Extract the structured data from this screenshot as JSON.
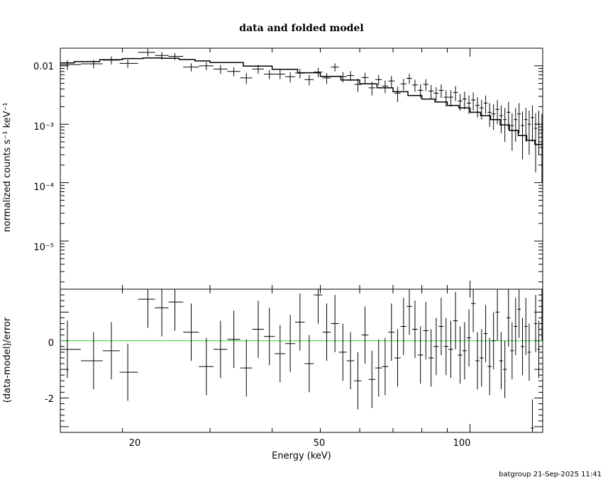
{
  "chart_data": {
    "type": "scatter",
    "title": "data and folded model",
    "xlabel": "Energy (keV)",
    "x_scale": "log",
    "xlim": [
      15,
      140
    ],
    "x_tick_labels": [
      "20",
      "50",
      "100"
    ],
    "footer": "batgroup 21-Sep-2025 11:41",
    "top_panel": {
      "ylabel": "normalized counts s⁻¹ keV⁻¹",
      "y_scale": "log",
      "ylim": [
        1.5e-06,
        0.02
      ],
      "y_tick_labels": [
        "0.01",
        "10⁻³",
        "10⁻⁴",
        "10⁻⁵"
      ],
      "data_series": {
        "name": "data",
        "x": [
          15.5,
          17.5,
          19.0,
          20.5,
          22.5,
          24.0,
          25.5,
          27.5,
          29.5,
          31.5,
          33.5,
          35.5,
          37.5,
          39.5,
          41.5,
          43.5,
          45.5,
          47.5,
          49.5,
          51.5,
          53.5,
          55.5,
          57.5,
          59.5,
          61.5,
          63.5,
          65.5,
          67.5,
          69.5,
          71.5,
          73.5,
          75.5,
          77.5,
          79.5,
          81.5,
          83.5,
          85.5,
          87.5,
          89.5,
          91.5,
          93.5,
          95.5,
          97.5,
          99.5,
          101.5,
          103.5,
          105.5,
          107.5,
          109.5,
          111.5,
          113.5,
          115.5,
          117.5,
          119.5,
          121.5,
          123.5,
          125.5,
          127.5,
          129.5,
          131.5,
          133.5,
          135.5,
          137.5,
          139.5
        ],
        "y": [
          0.0105,
          0.0108,
          0.0125,
          0.011,
          0.017,
          0.015,
          0.0145,
          0.0095,
          0.01,
          0.0088,
          0.008,
          0.0062,
          0.0088,
          0.0072,
          0.0072,
          0.0065,
          0.0075,
          0.0058,
          0.0078,
          0.0062,
          0.0095,
          0.0065,
          0.0068,
          0.0048,
          0.0063,
          0.0042,
          0.0058,
          0.0045,
          0.0055,
          0.0034,
          0.0049,
          0.0061,
          0.0047,
          0.0038,
          0.0048,
          0.0037,
          0.0034,
          0.0038,
          0.0029,
          0.0029,
          0.0035,
          0.0025,
          0.0027,
          0.0023,
          0.0026,
          0.0021,
          0.0019,
          0.0023,
          0.0016,
          0.0015,
          0.0018,
          0.0014,
          0.0012,
          0.0016,
          0.00095,
          0.0012,
          0.0015,
          0.00095,
          0.0012,
          0.001,
          0.0013,
          0.00085,
          0.001,
          0.0008
        ],
        "y_err": [
          0.002,
          0.0018,
          0.002,
          0.0018,
          0.0025,
          0.0022,
          0.002,
          0.0015,
          0.0016,
          0.0015,
          0.0014,
          0.0013,
          0.0015,
          0.0013,
          0.0013,
          0.0013,
          0.0014,
          0.0012,
          0.0014,
          0.0013,
          0.0015,
          0.0013,
          0.0013,
          0.0012,
          0.0013,
          0.0011,
          0.0012,
          0.0011,
          0.0012,
          0.001,
          0.0011,
          0.0012,
          0.0011,
          0.001,
          0.0011,
          0.001,
          0.0009,
          0.001,
          0.0009,
          0.0009,
          0.001,
          0.0008,
          0.0009,
          0.0008,
          0.0009,
          0.0008,
          0.0007,
          0.0008,
          0.0007,
          0.0007,
          0.0008,
          0.0007,
          0.0007,
          0.0008,
          0.0006,
          0.0007,
          0.0008,
          0.0007,
          0.0007,
          0.0007,
          0.0008,
          0.0007,
          0.0007,
          0.0007
        ]
      },
      "model_series": {
        "name": "model",
        "x": [
          15.0,
          16.0,
          18.0,
          20.0,
          22.0,
          24.0,
          26.0,
          28.0,
          30.0,
          35.0,
          40.0,
          45.0,
          50.0,
          55.0,
          60.0,
          65.0,
          70.0,
          75.0,
          80.0,
          85.0,
          90.0,
          95.0,
          100.0,
          105.0,
          110.0,
          115.0,
          120.0,
          125.0,
          130.0,
          135.0,
          140.0
        ],
        "y": [
          0.0112,
          0.0118,
          0.0127,
          0.0133,
          0.0136,
          0.0134,
          0.0128,
          0.0121,
          0.0114,
          0.0099,
          0.0087,
          0.0076,
          0.0066,
          0.0057,
          0.0049,
          0.0042,
          0.0036,
          0.0031,
          0.0027,
          0.0024,
          0.0021,
          0.0019,
          0.0016,
          0.0014,
          0.0012,
          0.00097,
          0.00078,
          0.00064,
          0.00053,
          0.00045,
          0.00038
        ]
      }
    },
    "bottom_panel": {
      "ylabel": "(data-model)/error",
      "ylim": [
        -3.2,
        1.8
      ],
      "y_tick_labels": [
        "0",
        "-2"
      ],
      "zero_line_color": "#33cc33",
      "residuals": {
        "x": [
          15.5,
          17.5,
          19.0,
          20.5,
          22.5,
          24.0,
          25.5,
          27.5,
          29.5,
          31.5,
          33.5,
          35.5,
          37.5,
          39.5,
          41.5,
          43.5,
          45.5,
          47.5,
          49.5,
          51.5,
          53.5,
          55.5,
          57.5,
          59.5,
          61.5,
          63.5,
          65.5,
          67.5,
          69.5,
          71.5,
          73.5,
          75.5,
          77.5,
          79.5,
          81.5,
          83.5,
          85.5,
          87.5,
          89.5,
          91.5,
          93.5,
          95.5,
          97.5,
          99.5,
          101.5,
          103.5,
          105.5,
          107.5,
          109.5,
          111.5,
          113.5,
          115.5,
          117.5,
          119.5,
          121.5,
          123.5,
          125.5,
          127.5,
          129.5,
          131.5,
          133.5,
          135.5,
          137.5,
          139.5
        ],
        "y": [
          -0.3,
          -0.7,
          -0.35,
          -1.1,
          1.45,
          1.15,
          1.35,
          0.3,
          -0.9,
          -0.3,
          0.05,
          -0.95,
          0.4,
          0.15,
          -0.45,
          -0.1,
          0.65,
          -0.8,
          1.6,
          0.3,
          0.6,
          -0.4,
          -0.7,
          -1.4,
          0.2,
          -1.35,
          -0.95,
          -0.9,
          0.3,
          -0.6,
          0.5,
          1.2,
          0.4,
          -0.5,
          0.35,
          -0.6,
          -0.2,
          0.5,
          -0.2,
          -0.3,
          0.7,
          -0.5,
          -0.35,
          0.1,
          1.3,
          -0.7,
          -0.6,
          0.25,
          -0.9,
          0.0,
          1.0,
          -0.7,
          -1.0,
          0.8,
          -0.35,
          0.5,
          1.1,
          -0.2,
          0.5,
          -0.4,
          -3.05,
          0.6,
          -0.3,
          1.0
        ],
        "y_err": [
          1.0,
          1.0,
          1.0,
          1.0,
          1.0,
          1.0,
          1.0,
          1.0,
          1.0,
          1.0,
          1.0,
          1.0,
          1.0,
          1.0,
          1.0,
          1.0,
          1.0,
          1.0,
          1.0,
          1.0,
          1.0,
          1.0,
          1.0,
          1.0,
          1.0,
          1.0,
          1.0,
          1.0,
          1.0,
          1.0,
          1.0,
          1.0,
          1.0,
          1.0,
          1.0,
          1.0,
          1.0,
          1.0,
          1.0,
          1.0,
          1.0,
          1.0,
          1.0,
          1.0,
          1.0,
          1.0,
          1.0,
          1.0,
          1.0,
          1.0,
          1.0,
          1.0,
          1.0,
          1.0,
          1.0,
          1.0,
          1.0,
          1.0,
          1.0,
          1.0,
          1.0,
          1.0,
          1.0,
          1.0
        ]
      }
    }
  }
}
